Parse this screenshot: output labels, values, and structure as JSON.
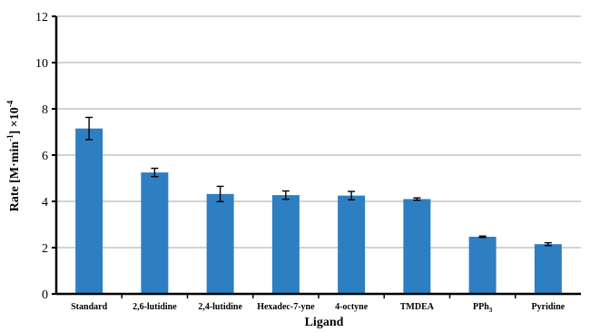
{
  "chart_data": {
    "type": "bar",
    "categories": [
      "Standard",
      "2,6-lutidine",
      "2,4-lutidine",
      "Hexadec-7-yne",
      "4-octyne",
      "TMDEA",
      "PPh3",
      "Pyridine"
    ],
    "category_labels": [
      {
        "main": "Standard",
        "sub": ""
      },
      {
        "main": "2,6-lutidine",
        "sub": ""
      },
      {
        "main": "2,4-lutidine",
        "sub": ""
      },
      {
        "main": "Hexadec-7-yne",
        "sub": ""
      },
      {
        "main": "4-octyne",
        "sub": ""
      },
      {
        "main": "TMDEA",
        "sub": ""
      },
      {
        "main": "PPh",
        "sub": "3"
      },
      {
        "main": "Pyridine",
        "sub": ""
      }
    ],
    "values": [
      7.15,
      5.25,
      4.32,
      4.27,
      4.25,
      4.1,
      2.47,
      2.15
    ],
    "errors": [
      0.48,
      0.18,
      0.33,
      0.18,
      0.18,
      0.05,
      0.03,
      0.06
    ],
    "ylim": [
      0,
      12
    ],
    "yticks": [
      0,
      2,
      4,
      6,
      8,
      10,
      12
    ],
    "xlabel": "Ligand",
    "ylabel": {
      "parts": [
        "Rate [M·min",
        "-1",
        "] ×10",
        "-4"
      ]
    },
    "grid": true,
    "bar_color": "#2E7EC2",
    "grid_color": "#A6A6A6"
  }
}
